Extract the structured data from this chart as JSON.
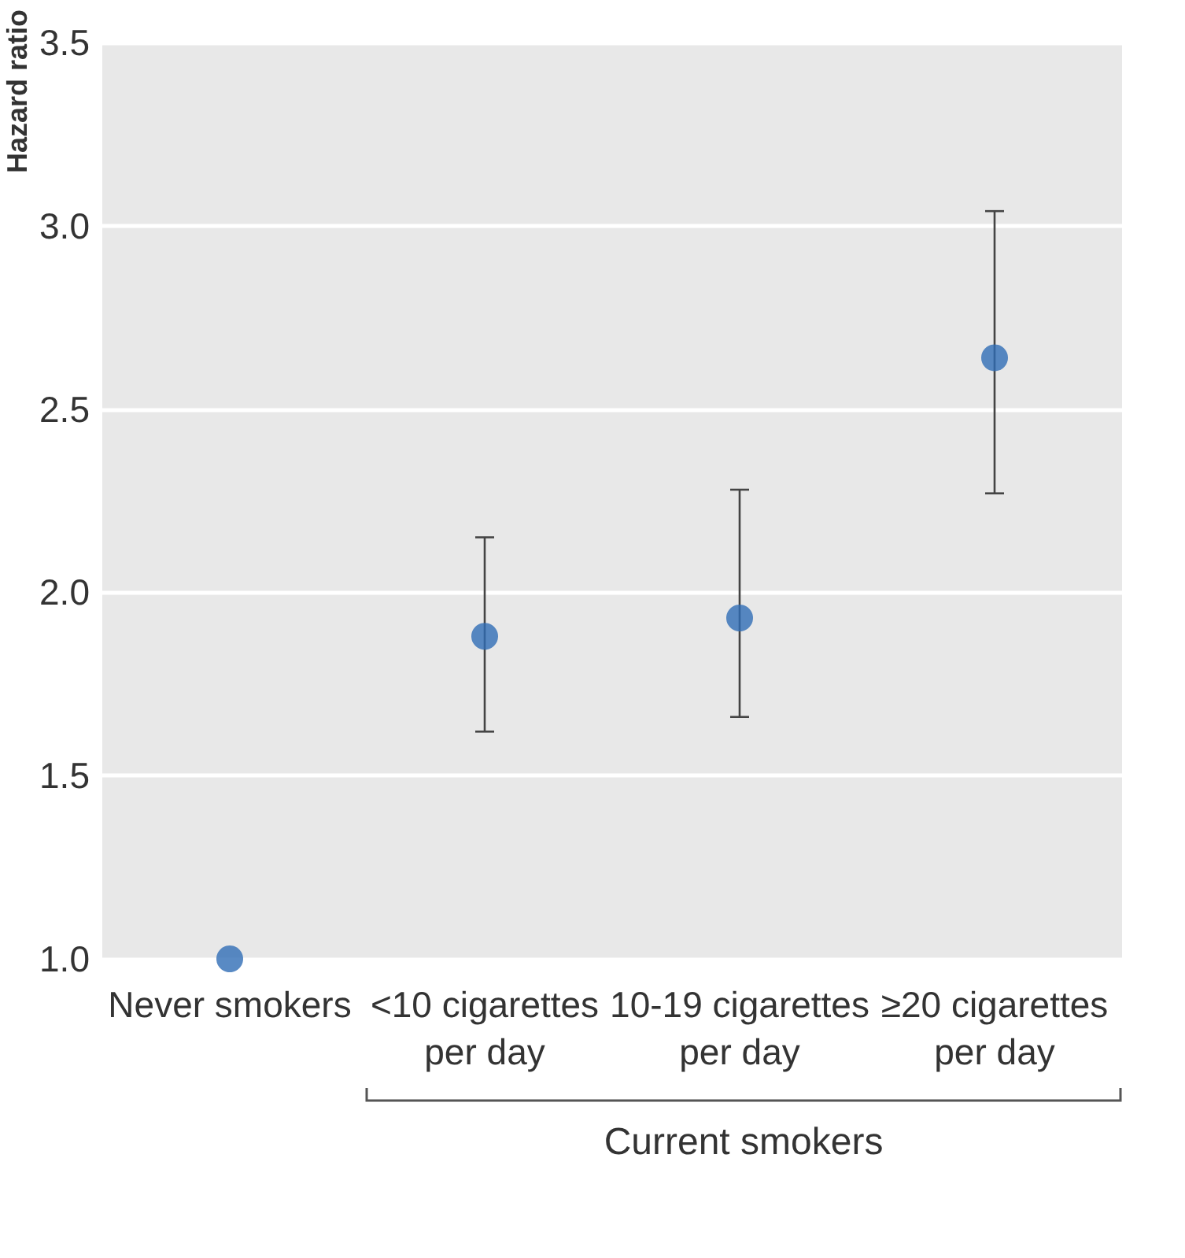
{
  "chart_data": {
    "type": "scatter",
    "ylabel": "Hazard ratio",
    "categories": [
      "Never smokers",
      "<10 cigarettes per day",
      "10-19 cigarettes per day",
      "≥20 cigarettes per day"
    ],
    "values": [
      1.0,
      1.88,
      1.93,
      2.64
    ],
    "errors": [
      null,
      [
        1.62,
        2.15
      ],
      [
        1.66,
        2.28
      ],
      [
        2.27,
        3.04
      ]
    ],
    "color": "#2f6db5",
    "ylim": [
      1.0,
      3.5
    ],
    "yticks": [
      {
        "value": 1.0,
        "label": "1.0"
      },
      {
        "value": 1.5,
        "label": "1.5"
      },
      {
        "value": 2.0,
        "label": "2.0"
      },
      {
        "value": 2.5,
        "label": "2.5"
      },
      {
        "value": 3.0,
        "label": "3.0"
      },
      {
        "value": 3.5,
        "label": "3.5"
      }
    ],
    "grid": "y",
    "marker": "circle",
    "annotations": [
      "Current smokers"
    ]
  }
}
